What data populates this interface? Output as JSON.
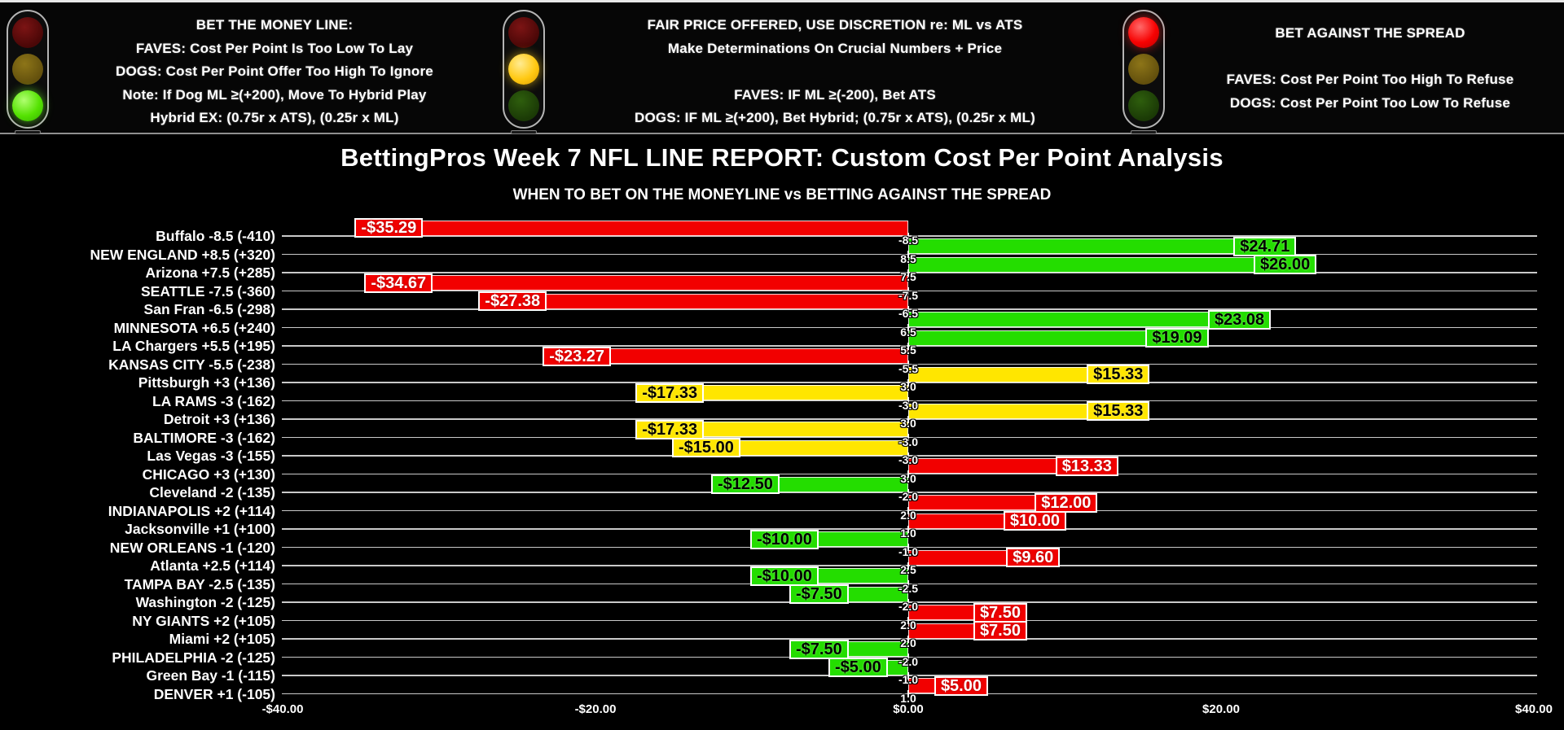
{
  "header": {
    "sections": [
      {
        "id": "bet-money-line",
        "light_on": "green",
        "lines": [
          "BET THE MONEY LINE:",
          "FAVES: Cost Per Point Is Too Low To Lay",
          "DOGS: Cost Per Point Offer Too High To Ignore",
          "Note: If Dog ML ≥(+200), Move To Hybrid Play",
          "Hybrid EX: (0.75r x ATS), (0.25r x ML)"
        ]
      },
      {
        "id": "fair-price",
        "light_on": "yellow",
        "lines": [
          "FAIR PRICE OFFERED, USE DISCRETION re: ML vs ATS",
          "Make Determinations On Crucial Numbers + Price",
          "",
          "FAVES: IF ML ≥(-200), Bet ATS",
          "DOGS: IF ML ≥(+200), Bet Hybrid; (0.75r x ATS), (0.25r x ML)"
        ]
      },
      {
        "id": "bet-against-spread",
        "light_on": "red",
        "lines": [
          "BET AGAINST THE SPREAD",
          "",
          "FAVES: Cost Per Point Too High To Refuse",
          "DOGS: Cost Per Point Too Low To Refuse"
        ]
      }
    ]
  },
  "chart_data": {
    "type": "bar",
    "orientation": "horizontal",
    "title": "BettingPros Week 7 NFL LINE REPORT: Custom Cost Per Point Analysis",
    "subtitle": "WHEN TO BET ON THE MONEYLINE vs BETTING AGAINST THE SPREAD",
    "xlim": [
      -40,
      40
    ],
    "x_ticks": [
      {
        "label": "-$40.00",
        "value": -40
      },
      {
        "label": "-$20.00",
        "value": -20
      },
      {
        "label": "$0.00",
        "value": 0
      },
      {
        "label": "$20.00",
        "value": 20
      },
      {
        "label": "$40.00",
        "value": 40
      }
    ],
    "palette": {
      "red": "#f20000",
      "yellow": "#ffe600",
      "green": "#24dd00"
    },
    "bars": [
      {
        "team": "Buffalo -8.5 (-410)",
        "value": -35.29,
        "label": "-$35.29",
        "spread": "-8.5",
        "color": "red"
      },
      {
        "team": "NEW ENGLAND +8.5 (+320)",
        "value": 24.71,
        "label": "$24.71",
        "spread": "8.5",
        "color": "green"
      },
      {
        "team": "Arizona +7.5 (+285)",
        "value": 26.0,
        "label": "$26.00",
        "spread": "7.5",
        "color": "green"
      },
      {
        "team": "SEATTLE -7.5 (-360)",
        "value": -34.67,
        "label": "-$34.67",
        "spread": "-7.5",
        "color": "red"
      },
      {
        "team": "San Fran -6.5 (-298)",
        "value": -27.38,
        "label": "-$27.38",
        "spread": "-6.5",
        "color": "red"
      },
      {
        "team": "MINNESOTA +6.5 (+240)",
        "value": 23.08,
        "label": "$23.08",
        "spread": "6.5",
        "color": "green"
      },
      {
        "team": "LA Chargers +5.5 (+195)",
        "value": 19.09,
        "label": "$19.09",
        "spread": "5.5",
        "color": "green"
      },
      {
        "team": "KANSAS CITY -5.5 (-238)",
        "value": -23.27,
        "label": "-$23.27",
        "spread": "-5.5",
        "color": "red"
      },
      {
        "team": "Pittsburgh +3 (+136)",
        "value": 15.33,
        "label": "$15.33",
        "spread": "3.0",
        "color": "yellow"
      },
      {
        "team": "LA RAMS -3 (-162)",
        "value": -17.33,
        "label": "-$17.33",
        "spread": "-3.0",
        "color": "yellow"
      },
      {
        "team": "Detroit +3 (+136)",
        "value": 15.33,
        "label": "$15.33",
        "spread": "3.0",
        "color": "yellow"
      },
      {
        "team": "BALTIMORE -3 (-162)",
        "value": -17.33,
        "label": "-$17.33",
        "spread": "-3.0",
        "color": "yellow"
      },
      {
        "team": "Las Vegas -3 (-155)",
        "value": -15.0,
        "label": "-$15.00",
        "spread": "-3.0",
        "color": "yellow"
      },
      {
        "team": "CHICAGO +3 (+130)",
        "value": 13.33,
        "label": "$13.33",
        "spread": "3.0",
        "color": "red"
      },
      {
        "team": "Cleveland -2 (-135)",
        "value": -12.5,
        "label": "-$12.50",
        "spread": "-2.0",
        "color": "green"
      },
      {
        "team": "INDIANAPOLIS +2 (+114)",
        "value": 12.0,
        "label": "$12.00",
        "spread": "2.0",
        "color": "red"
      },
      {
        "team": "Jacksonville +1 (+100)",
        "value": 10.0,
        "label": "$10.00",
        "spread": "1.0",
        "color": "red"
      },
      {
        "team": "NEW ORLEANS -1 (-120)",
        "value": -10.0,
        "label": "-$10.00",
        "spread": "-1.0",
        "color": "green"
      },
      {
        "team": "Atlanta +2.5 (+114)",
        "value": 9.6,
        "label": "$9.60",
        "spread": "2.5",
        "color": "red"
      },
      {
        "team": "TAMPA BAY -2.5 (-135)",
        "value": -10.0,
        "label": "-$10.00",
        "spread": "-2.5",
        "color": "green"
      },
      {
        "team": "Washington -2 (-125)",
        "value": -7.5,
        "label": "-$7.50",
        "spread": "-2.0",
        "color": "green"
      },
      {
        "team": "NY GIANTS +2 (+105)",
        "value": 7.5,
        "label": "$7.50",
        "spread": "2.0",
        "color": "red"
      },
      {
        "team": "Miami +2 (+105)",
        "value": 7.5,
        "label": "$7.50",
        "spread": "2.0",
        "color": "red"
      },
      {
        "team": "PHILADELPHIA -2 (-125)",
        "value": -7.5,
        "label": "-$7.50",
        "spread": "-2.0",
        "color": "green"
      },
      {
        "team": "Green Bay -1 (-115)",
        "value": -5.0,
        "label": "-$5.00",
        "spread": "-1.0",
        "color": "green"
      },
      {
        "team": "DENVER +1 (-105)",
        "value": 5.0,
        "label": "$5.00",
        "spread": "1.0",
        "color": "red"
      }
    ]
  }
}
